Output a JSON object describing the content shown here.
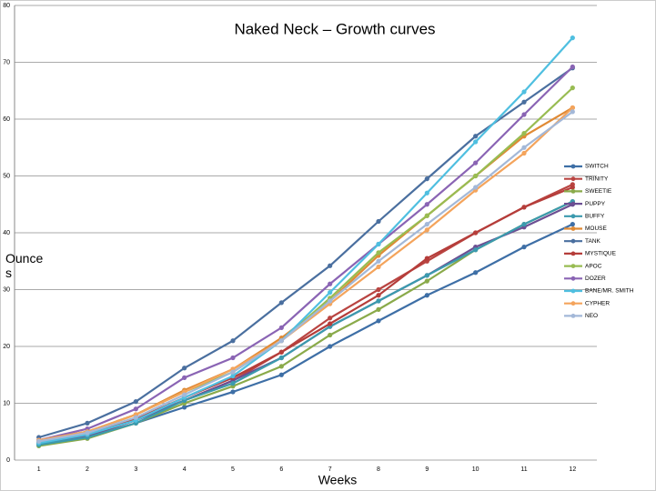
{
  "chart_data": {
    "type": "line",
    "title": "Naked Neck – Growth curves",
    "x_label": "Weeks",
    "y_label": "Ounces",
    "categories": [
      "1",
      "2",
      "3",
      "4",
      "5",
      "6",
      "7",
      "8",
      "9",
      "10",
      "11",
      "12"
    ],
    "ylim": [
      0,
      80
    ],
    "yticks": [
      0,
      10,
      20,
      30,
      40,
      50,
      60,
      70,
      80
    ],
    "grid": true,
    "legend": "right",
    "series": [
      {
        "name": "SWITCH",
        "color": "#3e6fa6",
        "values": [
          2.8,
          4,
          6.5,
          9.3,
          12,
          15,
          20,
          24.5,
          29,
          33,
          37.5,
          41.5
        ]
      },
      {
        "name": "TRINITY",
        "color": "#b94441",
        "values": [
          3,
          4.2,
          7,
          10.5,
          14,
          19,
          25,
          30,
          35,
          40,
          44.5,
          48.5
        ]
      },
      {
        "name": "SWEETIE",
        "color": "#8aaa4a",
        "values": [
          2.5,
          3.8,
          6.5,
          10,
          13,
          16.5,
          22,
          26.5,
          31.5,
          37,
          41.5,
          45.5
        ]
      },
      {
        "name": "PUPPY",
        "color": "#6c4f93",
        "values": [
          3,
          4.3,
          7,
          10.5,
          14,
          18,
          23.5,
          28,
          32.5,
          37.5,
          41,
          45
        ]
      },
      {
        "name": "BUFFY",
        "color": "#3b9aae",
        "values": [
          2.7,
          4,
          6.5,
          10.5,
          13.5,
          18,
          23.5,
          28,
          32.5,
          37,
          41.5,
          45.5
        ]
      },
      {
        "name": "MOUSE",
        "color": "#e08a35",
        "values": [
          3.5,
          5,
          8,
          12.3,
          16,
          21.5,
          28,
          36,
          43,
          50,
          57,
          62
        ]
      },
      {
        "name": "TANK",
        "color": "#4a6f9f",
        "values": [
          4,
          6.5,
          10.3,
          16.2,
          21,
          27.7,
          34.2,
          42,
          49.5,
          57,
          63,
          69
        ]
      },
      {
        "name": "MYSTIQUE",
        "color": "#b53d3a",
        "values": [
          3.2,
          4.5,
          7.2,
          11,
          14.5,
          19,
          24,
          29,
          35.5,
          40,
          44.5,
          48
        ]
      },
      {
        "name": "APOC",
        "color": "#98bc52",
        "values": [
          3.3,
          5,
          8,
          12,
          15.5,
          21,
          28.5,
          36.5,
          43,
          50,
          57.5,
          65.5
        ]
      },
      {
        "name": "DOZER",
        "color": "#8a64b4",
        "values": [
          3.5,
          5.5,
          9,
          14.5,
          18,
          23.3,
          31,
          38,
          45,
          52.3,
          60.8,
          69.2
        ]
      },
      {
        "name": "BANE/MR. SMITH",
        "color": "#4fbfe0",
        "values": [
          3,
          4.5,
          7,
          11,
          14.8,
          21,
          29.5,
          38,
          47,
          56,
          64.8,
          74.3
        ]
      },
      {
        "name": "CYPHER",
        "color": "#f4a45c",
        "values": [
          3.5,
          5,
          8,
          12,
          16,
          21,
          27.5,
          34,
          40.5,
          47.5,
          54,
          62
        ]
      },
      {
        "name": "NEO",
        "color": "#a3b8d8",
        "values": [
          3.3,
          4.8,
          7.5,
          11.5,
          15.5,
          21,
          28,
          35,
          41.5,
          48,
          55,
          61.3
        ]
      }
    ]
  }
}
